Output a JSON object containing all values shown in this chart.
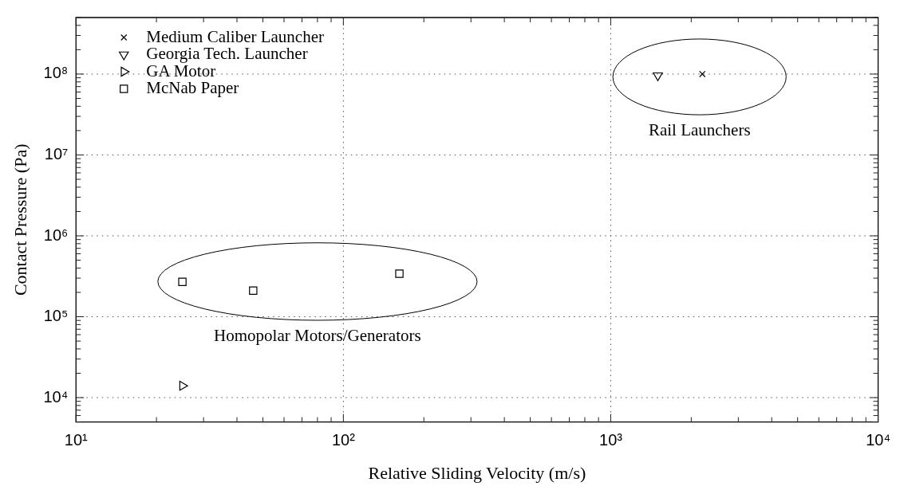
{
  "chart_data": {
    "type": "scatter",
    "xlabel": "Relative Sliding Velocity (m/s)",
    "ylabel": "Contact Pressure (Pa)",
    "log": "xy",
    "grid": true,
    "legend": "top left",
    "xlim": [
      10,
      10000
    ],
    "xticks": [
      {
        "value": 10,
        "label": "10¹"
      },
      {
        "value": 100,
        "label": "10²"
      },
      {
        "value": 1000,
        "label": "10³"
      },
      {
        "value": 10000,
        "label": "10⁴"
      }
    ],
    "ylim": [
      5000,
      500000000
    ],
    "yticks": [
      {
        "value": 10000,
        "label": "10⁴"
      },
      {
        "value": 100000,
        "label": "10⁵"
      },
      {
        "value": 1000000,
        "label": "10⁶"
      },
      {
        "value": 10000000,
        "label": "10⁷"
      },
      {
        "value": 100000000,
        "label": "10⁸"
      }
    ],
    "series": [
      {
        "name": "Medium Caliber Launcher",
        "color": "#000000",
        "marker": "cross",
        "x": [
          2200
        ],
        "values": [
          100000000
        ]
      },
      {
        "name": "Georgia Tech. Launcher",
        "color": "#000000",
        "marker": "triangle-down",
        "x": [
          1500
        ],
        "values": [
          96000000
        ]
      },
      {
        "name": "GA Motor",
        "color": "#000000",
        "marker": "triangle-right",
        "x": [
          25
        ],
        "values": [
          14000
        ]
      },
      {
        "name": "McNab Paper",
        "color": "#000000",
        "marker": "square",
        "x": [
          25,
          46,
          162
        ],
        "values": [
          270000,
          210000,
          340000
        ]
      }
    ],
    "annotations": [
      "Rail Launchers",
      "Homopolar Motors/Generators"
    ]
  }
}
